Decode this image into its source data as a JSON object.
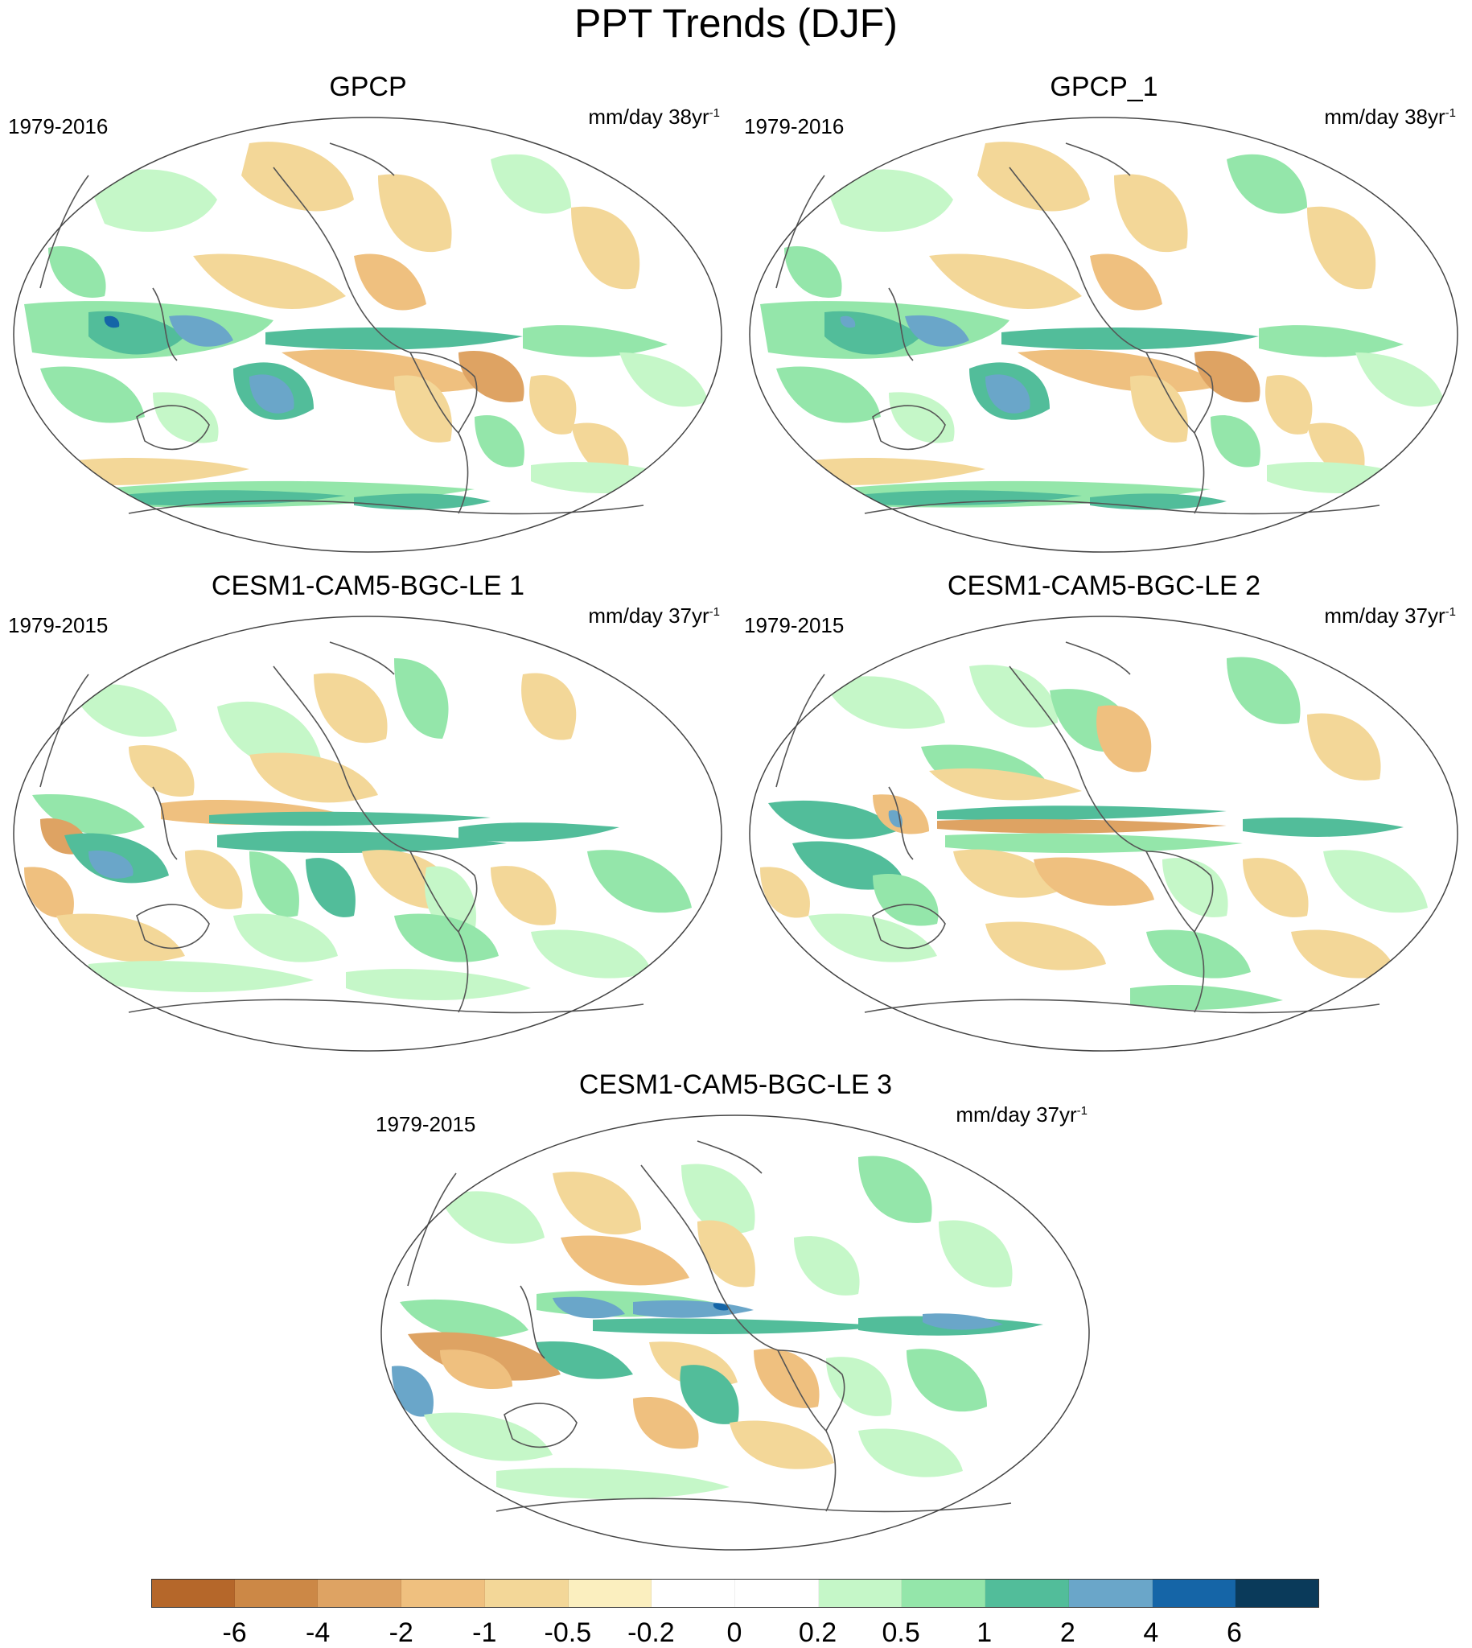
{
  "title": "PPT Trends (DJF)",
  "panels": [
    {
      "title": "GPCP",
      "period": "1979-2016",
      "units": "mm/day 38yr",
      "units_sup": "-1"
    },
    {
      "title": "GPCP_1",
      "period": "1979-2016",
      "units": "mm/day 38yr",
      "units_sup": "-1"
    },
    {
      "title": "CESM1-CAM5-BGC-LE 1",
      "period": "1979-2015",
      "units": "mm/day 37yr",
      "units_sup": "-1"
    },
    {
      "title": "CESM1-CAM5-BGC-LE 2",
      "period": "1979-2015",
      "units": "mm/day 37yr",
      "units_sup": "-1"
    },
    {
      "title": "CESM1-CAM5-BGC-LE 3",
      "period": "1979-2015",
      "units": "mm/day 37yr",
      "units_sup": "-1"
    }
  ],
  "colorbar": {
    "labels": [
      "-6",
      "-4",
      "-2",
      "-1",
      "-0.5",
      "-0.2",
      "0",
      "0.2",
      "0.5",
      "1",
      "2",
      "4",
      "6"
    ],
    "colors": [
      "#b5672a",
      "#cc8846",
      "#dea363",
      "#efc07f",
      "#f3d798",
      "#fbefbf",
      "#ffffff",
      "#ffffff",
      "#c5f7c8",
      "#94e6aa",
      "#52bd9a",
      "#6aa6c9",
      "#1565a7",
      "#0a3a5a"
    ]
  },
  "map_legend": {
    "projection": "Robinson-like world map, Pacific-centered",
    "shading": "precipitation trend"
  }
}
